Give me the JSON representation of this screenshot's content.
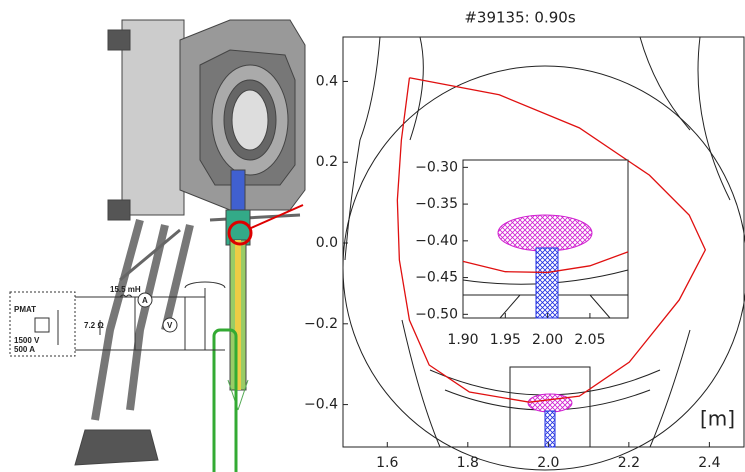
{
  "chart_data": [
    {
      "type": "line",
      "title": "#39135: 0.90s",
      "annotations": [
        "[m]"
      ],
      "xlim": [
        1.49,
        2.486
      ],
      "ylim": [
        -0.505,
        0.51
      ],
      "xticks": [
        1.6,
        1.8,
        {
          "value": 2.0,
          "label": "2.0"
        },
        2.2,
        2.4
      ],
      "yticks": [
        0.4,
        0.2,
        {
          "value": 0.0,
          "label": "0.0"
        },
        {
          "value": -0.2,
          "label": "−0.2"
        },
        {
          "value": -0.4,
          "label": "−0.4"
        }
      ],
      "series": [
        {
          "color": "#e01010",
          "x": [
            1.655,
            1.635,
            1.625,
            1.63,
            1.655,
            1.704,
            1.804,
            1.953,
            2.077,
            2.201,
            2.325,
            2.39,
            2.35,
            2.251,
            2.077,
            1.878,
            1.655
          ],
          "values": [
            0.409,
            0.255,
            0.106,
            -0.042,
            -0.191,
            -0.302,
            -0.369,
            -0.394,
            -0.379,
            -0.295,
            -0.141,
            -0.017,
            0.069,
            0.168,
            0.285,
            0.367,
            0.409
          ]
        }
      ]
    },
    {
      "type": "line",
      "xlim": [
        1.9,
        2.095
      ],
      "ylim": [
        -0.505,
        -0.29
      ],
      "xticks": [
        {
          "value": 1.9,
          "label": "1.90"
        },
        1.95,
        {
          "value": 2.0,
          "label": "2.00"
        },
        2.05
      ],
      "yticks": [
        {
          "value": -0.3,
          "label": "−0.30"
        },
        {
          "value": -0.35,
          "label": "−0.35"
        },
        {
          "value": -0.4,
          "label": "−0.40"
        },
        {
          "value": -0.45,
          "label": "−0.45"
        },
        {
          "value": -0.5,
          "label": "−0.50"
        }
      ],
      "series": [
        {
          "color": "#e01010",
          "x": [
            1.9,
            1.95,
            2.0,
            2.05,
            2.095
          ],
          "values": [
            -0.428,
            -0.442,
            -0.443,
            -0.434,
            -0.415
          ]
        }
      ]
    }
  ],
  "circuit": {
    "labels": [
      "PMAT",
      "15.5 mH",
      "7.2 Ω",
      "A",
      "V",
      "1500 V",
      "500 A"
    ]
  }
}
